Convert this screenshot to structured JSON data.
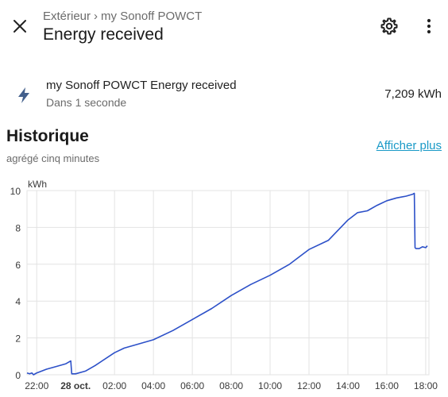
{
  "header": {
    "breadcrumb_parent": "Extérieur",
    "breadcrumb_separator": "›",
    "breadcrumb_device": "my Sonoff POWCT",
    "title": "Energy received",
    "close_icon": "close-icon",
    "settings_icon": "gear-icon",
    "more_icon": "more-vertical-icon"
  },
  "entity": {
    "icon": "lightning-bolt-icon",
    "name": "my Sonoff POWCT Energy received",
    "last_changed": "Dans 1 seconde",
    "state": "7,209 kWh"
  },
  "history": {
    "title": "Historique",
    "subtitle": "agrégé cinq minutes",
    "show_more": "Afficher plus"
  },
  "colors": {
    "line": "#2c50c8",
    "link": "#1a9ac7",
    "icon": "#43608c"
  },
  "chart_data": {
    "type": "line",
    "unit": "kWh",
    "ylim": [
      0,
      10
    ],
    "yticks": [
      0,
      2,
      4,
      6,
      8,
      10
    ],
    "xlim": [
      "21:30",
      "18:10"
    ],
    "xticks": [
      {
        "label": "22:00",
        "t": "22:00",
        "bold": false
      },
      {
        "label": "28 oct.",
        "t": "00:00",
        "bold": true
      },
      {
        "label": "02:00",
        "t": "02:00",
        "bold": false
      },
      {
        "label": "04:00",
        "t": "04:00",
        "bold": false
      },
      {
        "label": "06:00",
        "t": "06:00",
        "bold": false
      },
      {
        "label": "08:00",
        "t": "08:00",
        "bold": false
      },
      {
        "label": "10:00",
        "t": "10:00",
        "bold": false
      },
      {
        "label": "12:00",
        "t": "12:00",
        "bold": false
      },
      {
        "label": "14:00",
        "t": "14:00",
        "bold": false
      },
      {
        "label": "16:00",
        "t": "16:00",
        "bold": false
      },
      {
        "label": "18:00",
        "t": "18:00",
        "bold": false
      }
    ],
    "grid": true,
    "series": [
      {
        "points": [
          [
            "21:30",
            0.1
          ],
          [
            "21:38",
            0.05
          ],
          [
            "21:45",
            0.1
          ],
          [
            "21:50",
            0.0
          ],
          [
            "22:00",
            0.1
          ],
          [
            "22:30",
            0.3
          ],
          [
            "23:00",
            0.45
          ],
          [
            "23:30",
            0.6
          ],
          [
            "23:45",
            0.75
          ],
          [
            "23:48",
            0.05
          ],
          [
            "00:00",
            0.05
          ],
          [
            "00:30",
            0.2
          ],
          [
            "01:00",
            0.5
          ],
          [
            "02:00",
            1.2
          ],
          [
            "02:30",
            1.45
          ],
          [
            "03:00",
            1.6
          ],
          [
            "04:00",
            1.9
          ],
          [
            "05:00",
            2.4
          ],
          [
            "06:00",
            3.0
          ],
          [
            "07:00",
            3.6
          ],
          [
            "08:00",
            4.3
          ],
          [
            "09:00",
            4.9
          ],
          [
            "10:00",
            5.4
          ],
          [
            "11:00",
            6.0
          ],
          [
            "12:00",
            6.8
          ],
          [
            "13:00",
            7.3
          ],
          [
            "14:00",
            8.4
          ],
          [
            "14:30",
            8.8
          ],
          [
            "15:00",
            8.9
          ],
          [
            "15:30",
            9.2
          ],
          [
            "16:00",
            9.45
          ],
          [
            "16:30",
            9.6
          ],
          [
            "17:00",
            9.7
          ],
          [
            "17:20",
            9.8
          ],
          [
            "17:25",
            9.85
          ],
          [
            "17:27",
            6.9
          ],
          [
            "17:30",
            6.85
          ],
          [
            "17:40",
            6.85
          ],
          [
            "17:50",
            6.95
          ],
          [
            "18:00",
            6.9
          ],
          [
            "18:05",
            7.0
          ]
        ]
      }
    ]
  }
}
